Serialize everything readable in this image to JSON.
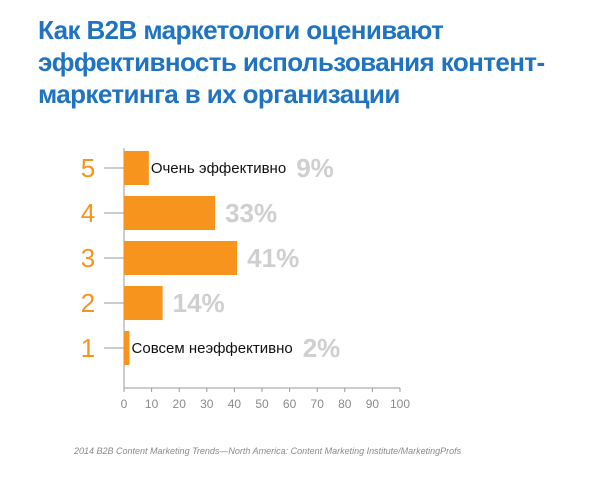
{
  "title": "Как B2B маркетологи оценивают эффективность использования контент-маркетинга в их организации",
  "source": "2014 B2B Content Marketing Trends—North America: Content Marketing Institute/MarketingProfs",
  "colors": {
    "title": "#1f73c1",
    "bar": "#f7941d",
    "level_label": "#f7941d",
    "value_label": "#cfcfcf",
    "axis": "#9a9a9a"
  },
  "chart_data": {
    "type": "bar",
    "orientation": "horizontal",
    "categories": [
      "5",
      "4",
      "3",
      "2",
      "1"
    ],
    "values": [
      9,
      33,
      41,
      14,
      2
    ],
    "value_labels": [
      "9%",
      "33%",
      "41%",
      "14%",
      "2%"
    ],
    "bar_annotations": [
      "Очень эффективно",
      "",
      "",
      "",
      "Совсем неэффективно"
    ],
    "xlim": [
      0,
      100
    ],
    "xticks": [
      0,
      10,
      20,
      30,
      40,
      50,
      60,
      70,
      80,
      90,
      100
    ],
    "xlabel": "",
    "ylabel": "",
    "grid": false,
    "legend": "none"
  }
}
